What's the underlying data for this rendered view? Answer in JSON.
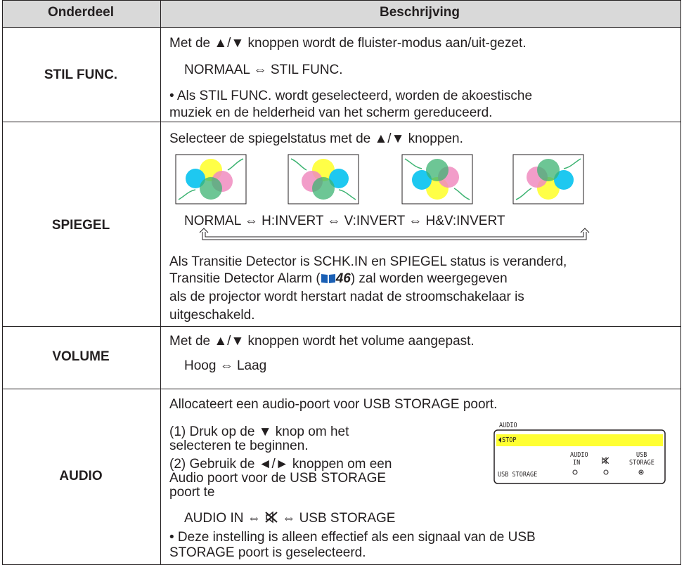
{
  "table": {
    "header": {
      "item": "Onderdeel",
      "description": "Beschrijving"
    },
    "rows": [
      {
        "item": "STIL FUNC.",
        "lines": [
          "Met de ▲/▼ knoppen wordt de fluister-modus aan/uit-gezet.",
          "NORMAAL ⇔ STIL FUNC.",
          "• Als STIL FUNC. wordt geselecteerd, worden de akoestische",
          "muziek en de helderheid van het scherm gereduceerd."
        ]
      },
      {
        "item": "SPIEGEL",
        "intro": "Selecteer de spiegelstatus met de ▲/▼ knoppen.",
        "sequence": "NORMAL ⇔ H:INVERT ⇔ V:INVERT ⇔ H&V:INVERT",
        "note": {
          "first": "Als Transitie Detector is SCHK.IN en SPIEGEL status is veranderd,",
          "before": "Transitie Detector Alarm (",
          "page": "46",
          "after": ") zal worden weergegeven",
          "rest": [
            "als de projector wordt herstart nadat de stroomschakelaar is",
            "uitgeschakeld."
          ]
        }
      },
      {
        "item": "VOLUME",
        "lines": [
          "Met de ▲/▼ knoppen wordt het volume aangepast.",
          "Hoog ⇔ Laag"
        ]
      },
      {
        "item": "AUDIO",
        "intro": "Allocateert een audio-poort voor USB STORAGE poort.",
        "steps": [
          "(1) Druk op de ▼ knop om het",
          "selecteren te beginnen.",
          "(2) Gebruik de ◄/► knoppen om een",
          "Audio poort voor de USB STORAGE",
          "poort te"
        ],
        "sequence": {
          "left": "AUDIO IN ⇔",
          "right": "⇔ USB STORAGE"
        },
        "footnote": [
          "• Deze instelling is alleen effectief als een signaal van de USB",
          "STORAGE poort is geselecteerd."
        ],
        "menu": {
          "title": "AUDIO",
          "selected": "STOP",
          "options": [
            [
              "AUDIO",
              "IN"
            ],
            [
              "USB",
              "STORAGE"
            ]
          ],
          "source": "USB STORAGE"
        }
      }
    ]
  }
}
